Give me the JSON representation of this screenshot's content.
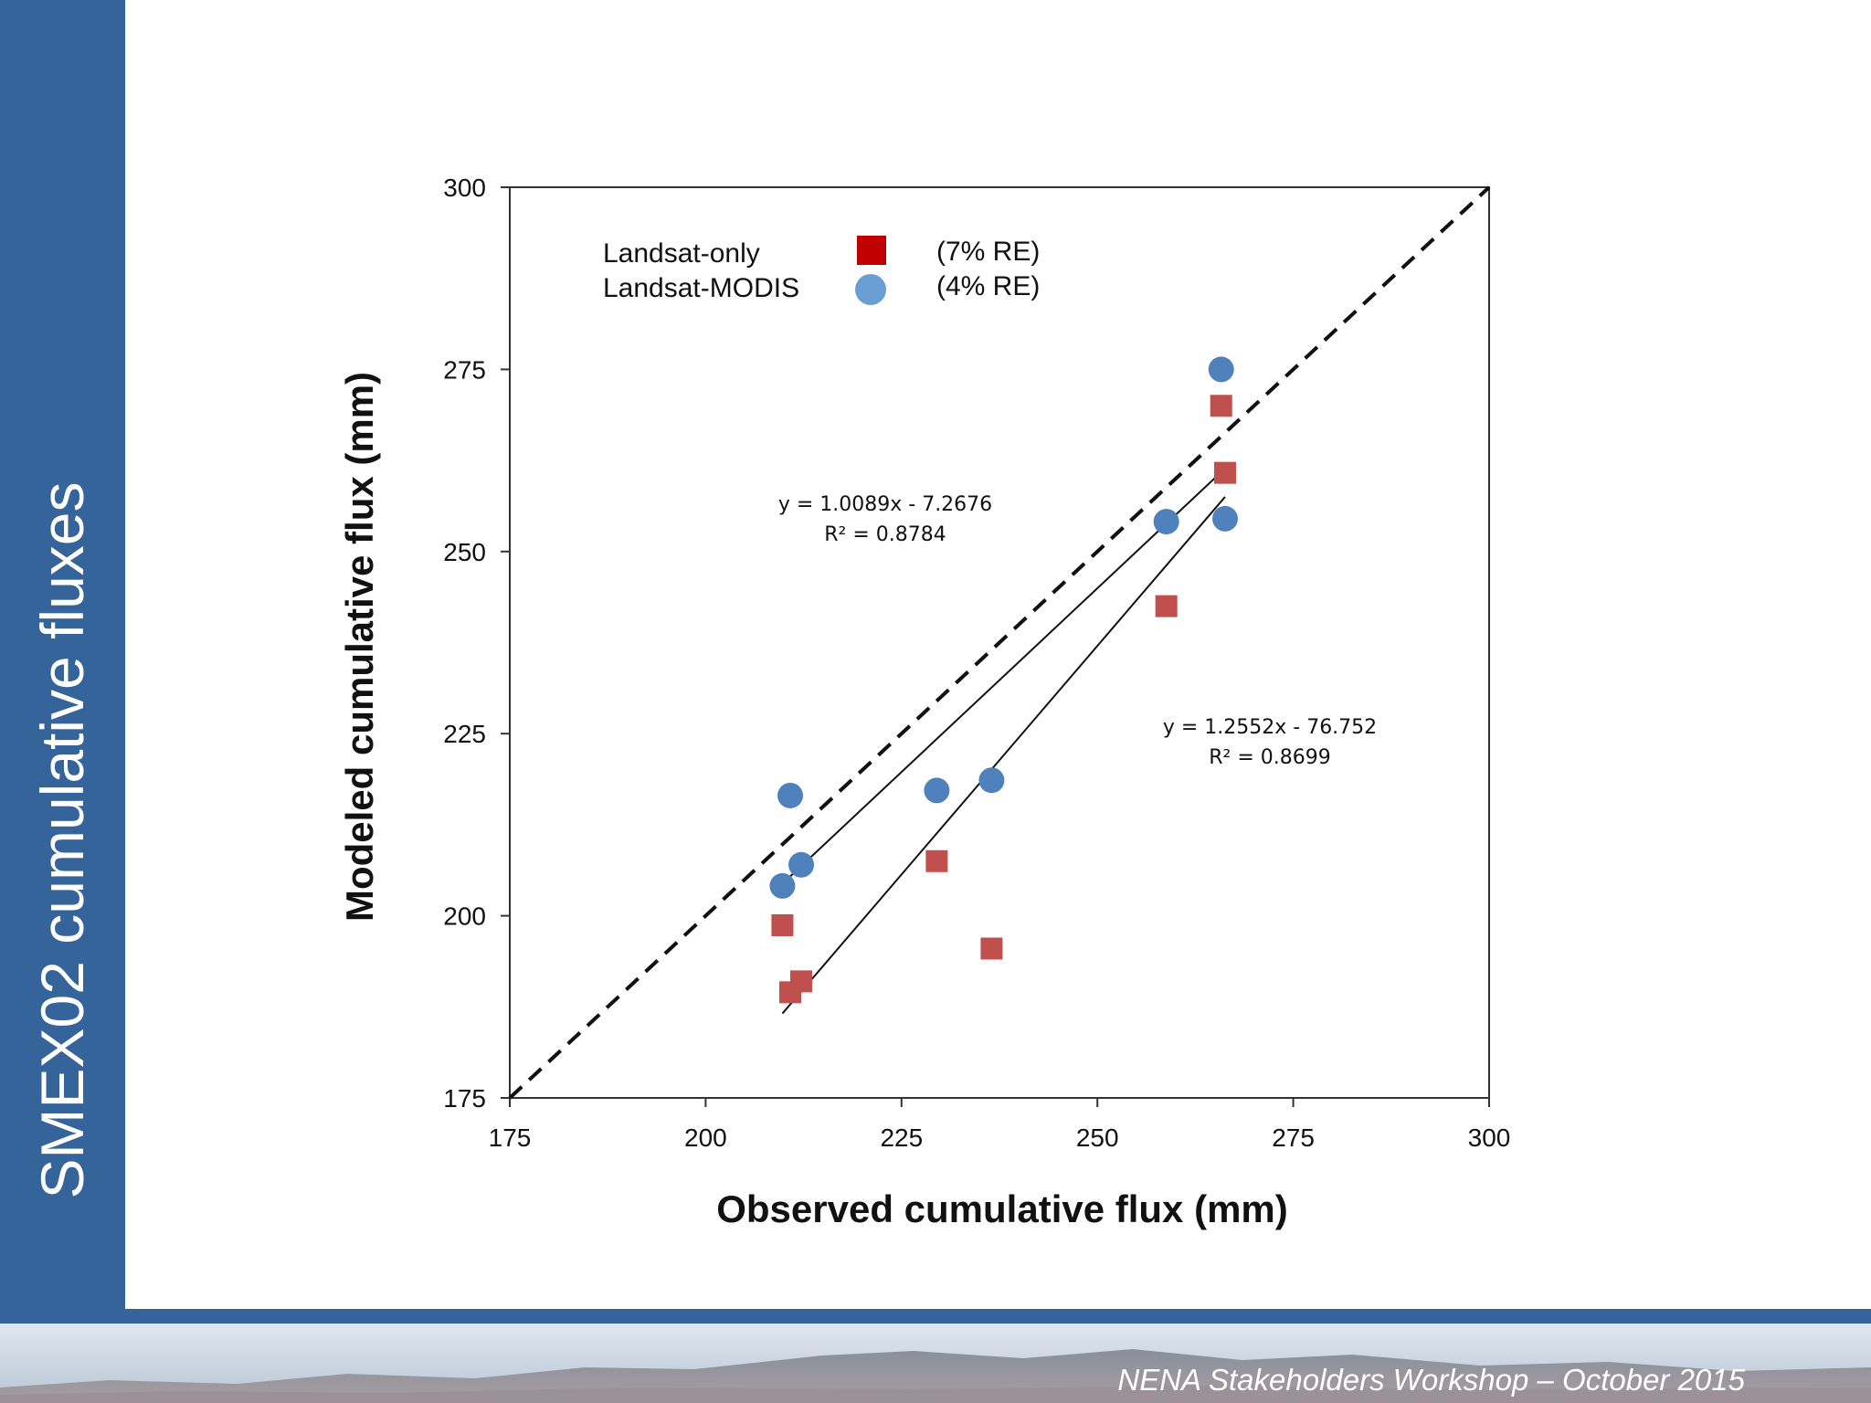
{
  "slide": {
    "title": "SMEX02 cumulative fluxes",
    "footer": "NENA Stakeholders Workshop – October 2015",
    "accent_color": "#35649a"
  },
  "chart_data": {
    "type": "scatter",
    "xlabel": "Observed cumulative flux (mm)",
    "ylabel": "Modeled cumulative flux (mm)",
    "xlim": [
      175,
      300
    ],
    "ylim": [
      175,
      300
    ],
    "xticks": [
      "175",
      "200",
      "225",
      "250",
      "275",
      "300"
    ],
    "yticks": [
      "175",
      "200",
      "225",
      "250",
      "275",
      "300"
    ],
    "grid": false,
    "legend_position": "top-left",
    "one_to_one_line": true,
    "series": [
      {
        "name": "Landsat-only",
        "note": "(7% RE)",
        "marker": "square",
        "color": "#c0504d",
        "legend_color": "#c00000",
        "points": [
          [
            209.8,
            198.7
          ],
          [
            210.8,
            189.5
          ],
          [
            212.2,
            191.0
          ],
          [
            229.5,
            207.5
          ],
          [
            236.5,
            195.5
          ],
          [
            258.8,
            242.5
          ],
          [
            265.8,
            270.0
          ],
          [
            266.3,
            260.8
          ]
        ],
        "trendline": {
          "equation": "y = 1.2552x - 76.752",
          "r2": "R² = 0.8699",
          "slope": 1.2552,
          "intercept": -76.752,
          "x_range": [
            209.8,
            266.3
          ]
        }
      },
      {
        "name": "Landsat-MODIS",
        "note": "(4% RE)",
        "marker": "circle",
        "color": "#4f81bd",
        "legend_color": "#6a9fd4",
        "points": [
          [
            209.8,
            204.1
          ],
          [
            210.8,
            216.5
          ],
          [
            212.2,
            207.0
          ],
          [
            229.5,
            217.2
          ],
          [
            236.5,
            218.6
          ],
          [
            258.8,
            254.1
          ],
          [
            265.8,
            275.0
          ],
          [
            266.3,
            254.5
          ]
        ],
        "trendline": {
          "equation": "y = 1.0089x - 7.2676",
          "r2": "R² = 0.8784",
          "slope": 1.0089,
          "intercept": -7.2676,
          "x_range": [
            209.8,
            266.3
          ]
        }
      }
    ]
  }
}
